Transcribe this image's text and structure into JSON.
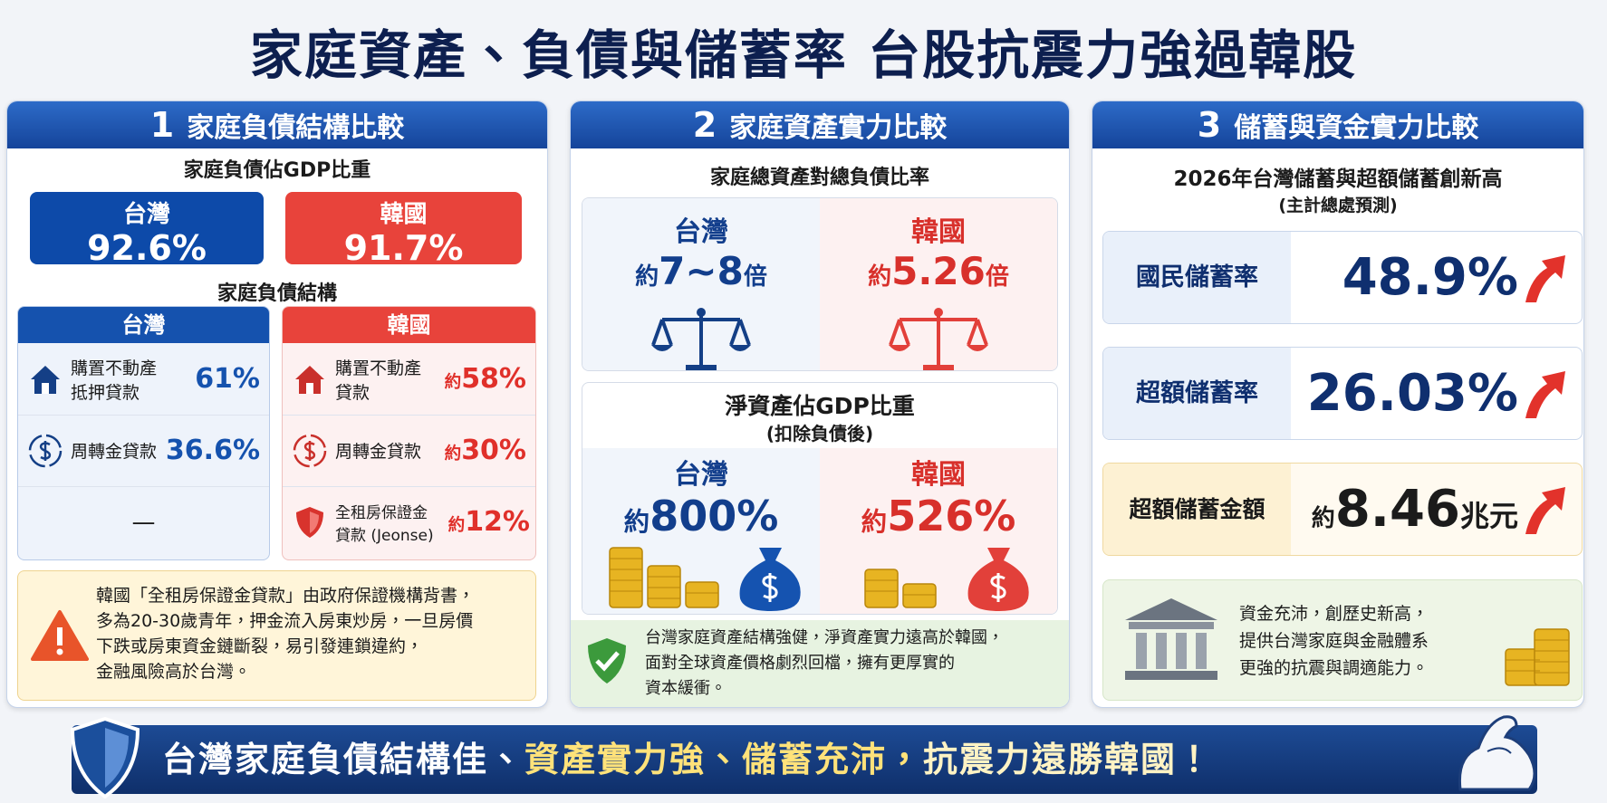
{
  "title": "家庭資產、負債與儲蓄率 台股抗震力強過韓股",
  "panel1": {
    "number": "1",
    "heading": "家庭負債結構比較",
    "gdp_title": "家庭負債佔GDP比重",
    "gdp": [
      {
        "country": "台灣",
        "value": "92.6%"
      },
      {
        "country": "韓國",
        "value": "91.7%"
      }
    ],
    "structure_title": "家庭負債結構",
    "structure": [
      {
        "country": "台灣",
        "items": [
          {
            "label": [
              "購置不動產",
              "抵押貸款"
            ],
            "value": "61%"
          },
          {
            "label": [
              "周轉金貸款"
            ],
            "value": "36.6%"
          },
          {
            "label": [
              "—"
            ]
          }
        ]
      },
      {
        "country": "韓國",
        "items": [
          {
            "label": [
              "購置不動產",
              "貸款"
            ],
            "prefix": "約",
            "value": "58%"
          },
          {
            "label": [
              "周轉金貸款"
            ],
            "prefix": "約",
            "value": "30%"
          },
          {
            "label": [
              "全租房保證金",
              "貸款 (Jeonse)"
            ],
            "prefix": "約",
            "value": "12%"
          }
        ]
      }
    ],
    "note": [
      "韓國「全租房保證金貸款」由政府保證機構背書，",
      "多為20-30歲青年，押金流入房東炒房，一旦房價",
      "下跌或房東資金鏈斷裂，易引發連鎖違約，",
      "金融風險高於台灣。"
    ]
  },
  "panel2": {
    "number": "2",
    "heading": "家庭資產實力比較",
    "ratio_title": "家庭總資產對總負債比率",
    "ratio": [
      {
        "country": "台灣",
        "prefix": "約",
        "value": "7~8",
        "suffix": "倍"
      },
      {
        "country": "韓國",
        "prefix": "約",
        "value": "5.26",
        "suffix": "倍"
      }
    ],
    "net_title": "淨資產佔GDP比重",
    "net_subtitle": "(扣除負債後)",
    "net": [
      {
        "country": "台灣",
        "prefix": "約",
        "value": "800%"
      },
      {
        "country": "韓國",
        "prefix": "約",
        "value": "526%"
      }
    ],
    "note": [
      "台灣家庭資產結構強健，淨資產實力遠高於韓國，",
      "面對全球資產價格劇烈回檔，擁有更厚實的",
      "資本緩衝。"
    ]
  },
  "panel3": {
    "number": "3",
    "heading": "儲蓄與資金實力比較",
    "title": "2026年台灣儲蓄與超額儲蓄創新高",
    "subtitle": "(主計總處預測)",
    "metrics": [
      {
        "label": "國民儲蓄率",
        "value": "48.9%"
      },
      {
        "label": "超額儲蓄率",
        "value": "26.03%"
      },
      {
        "label": "超額儲蓄金額",
        "prefix": "約",
        "value": "8.46",
        "suffix": "兆元"
      }
    ],
    "note": [
      "資金充沛，創歷史新高，",
      "提供台灣家庭與金融體系",
      "更強的抗震與調適能力。"
    ]
  },
  "banner": [
    "台灣家庭負債結構佳、",
    "資產實力強、儲蓄充沛，",
    "抗震力遠勝韓國！"
  ]
}
